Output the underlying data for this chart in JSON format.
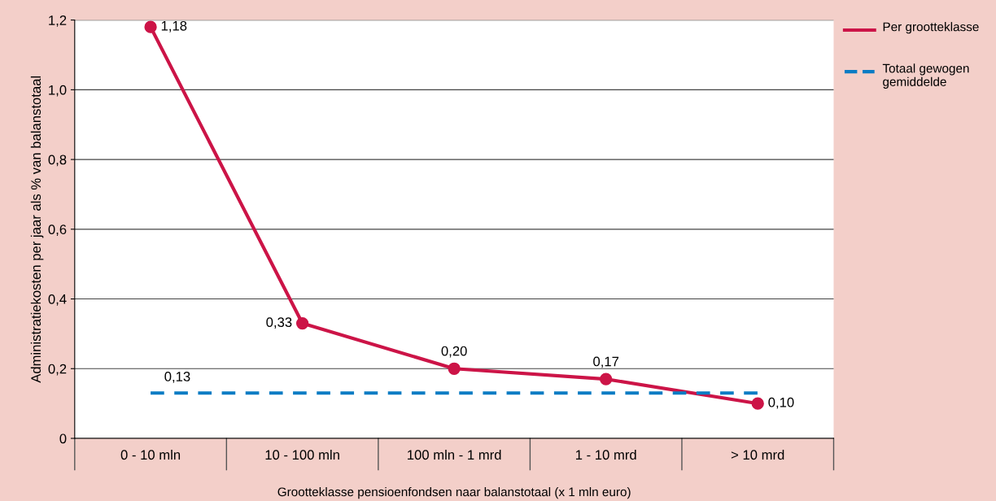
{
  "chart_data": {
    "type": "line",
    "xlabel": "Grootteklasse pensioenfondsen naar balanstotaal (x 1 mln euro)",
    "ylabel": "Administratiekosten per jaar als % van balanstotaal",
    "categories": [
      "0 - 10 mln",
      "10 - 100 mln",
      "100 mln - 1 mrd",
      "1 - 10 mrd",
      "> 10 mrd"
    ],
    "series": [
      {
        "name": "Per grootteklasse",
        "color": "#cc1447",
        "values": [
          1.18,
          0.33,
          0.2,
          0.17,
          0.1
        ],
        "value_labels": [
          "1,18",
          "0,33",
          "0,20",
          "0,17",
          "0,10"
        ],
        "marker": "circle",
        "line_style": "solid"
      },
      {
        "name": "Totaal gewogen gemiddelde",
        "color": "#0a7cc4",
        "values": [
          0.13,
          0.13,
          0.13,
          0.13,
          0.13
        ],
        "value_labels": [
          "0,13",
          null,
          null,
          null,
          null
        ],
        "marker": "none",
        "line_style": "dashed"
      }
    ],
    "ylim": [
      0,
      1.2
    ],
    "yticks": [
      0,
      {
        "value": 0.2,
        "label": "0,2"
      },
      {
        "value": 0.4,
        "label": "0,4"
      },
      {
        "value": 0.6,
        "label": "0,6"
      },
      {
        "value": 0.8,
        "label": "0,8"
      },
      {
        "value": 1.0,
        "label": "1,0"
      },
      {
        "value": 1.2,
        "label": "1,2"
      }
    ],
    "grid": "y",
    "legend": "top right"
  }
}
